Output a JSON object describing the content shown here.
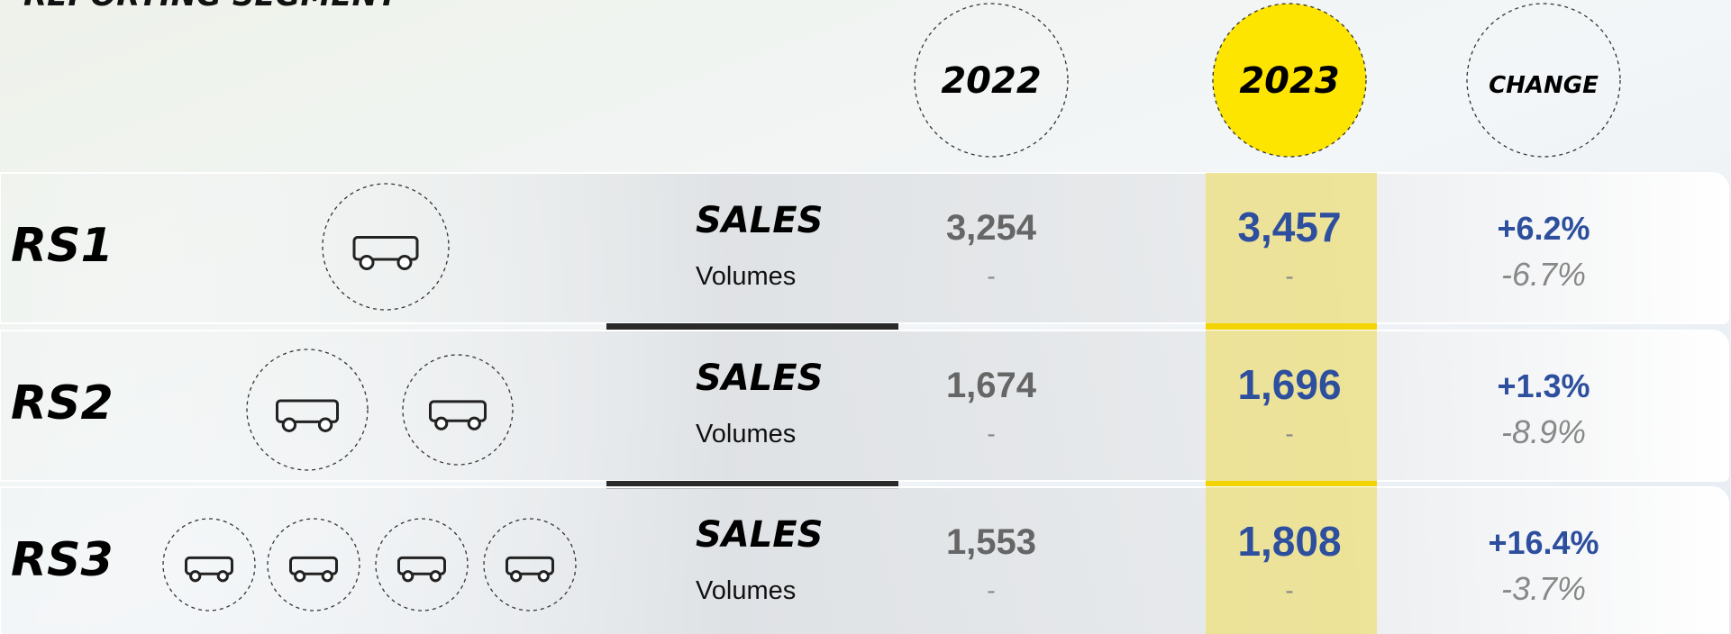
{
  "header": {
    "title": "REPORTING SEGMENT"
  },
  "columns": [
    "2022",
    "2023",
    "CHANGE"
  ],
  "rows": [
    {
      "segment": "RS1",
      "metric": "SALES",
      "sub": "Volumes",
      "v2022": "3,254",
      "v2022_sub": "-",
      "v2023": "3,457",
      "v2023_sub": "-",
      "change": "+6.2%",
      "change_sub": "-6.7%"
    },
    {
      "segment": "RS2",
      "metric": "SALES",
      "sub": "Volumes",
      "v2022": "1,674",
      "v2022_sub": "-",
      "v2023": "1,696",
      "v2023_sub": "-",
      "change": "+1.3%",
      "change_sub": "-8.9%"
    },
    {
      "segment": "RS3",
      "metric": "SALES",
      "sub": "Volumes",
      "v2022": "1,553",
      "v2022_sub": "-",
      "v2023": "1,808",
      "v2023_sub": "-",
      "change": "+16.4%",
      "change_sub": "-3.7%"
    }
  ]
}
